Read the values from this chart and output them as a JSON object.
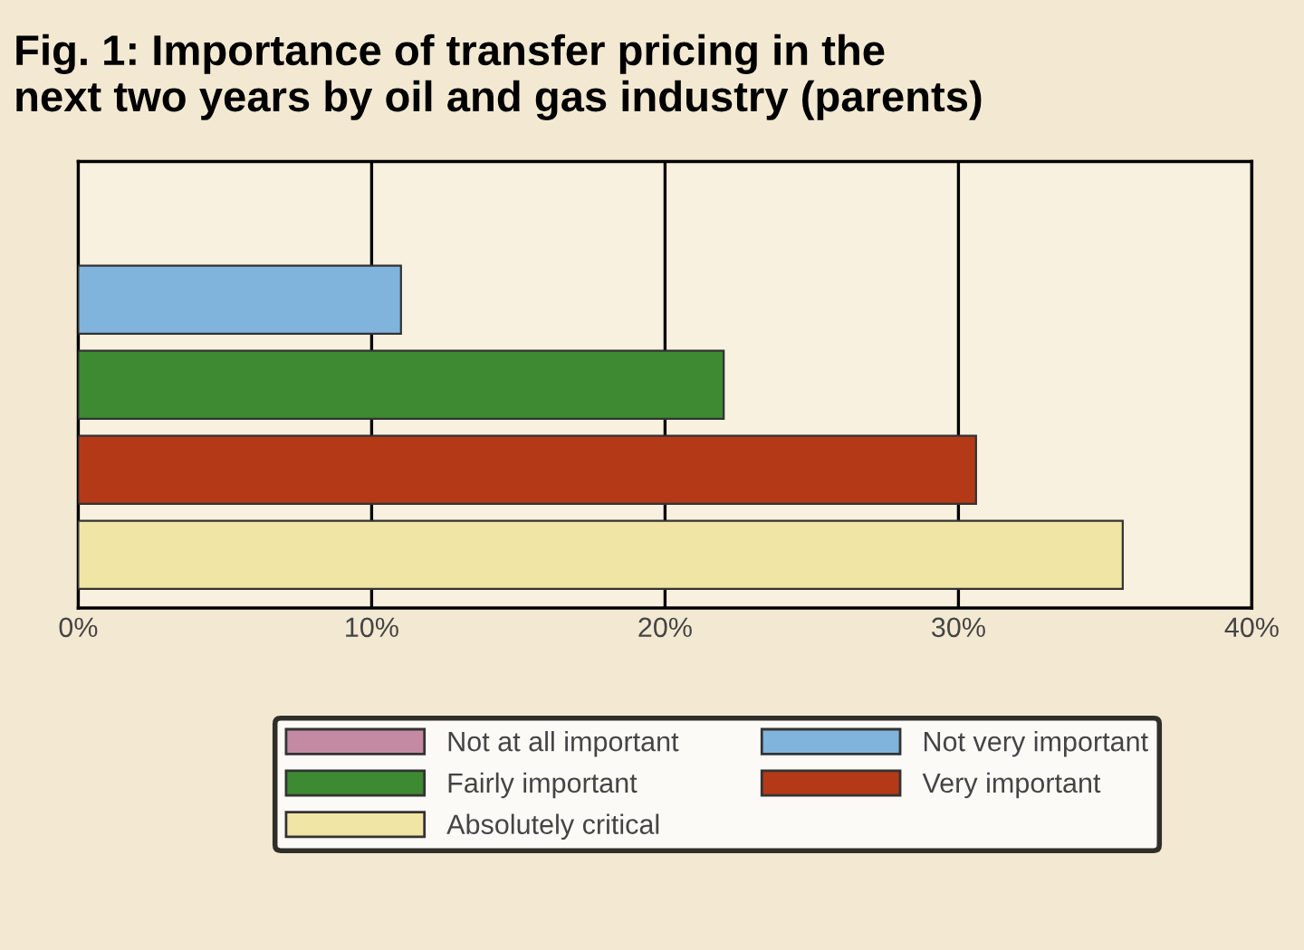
{
  "chart_data": {
    "type": "bar",
    "orientation": "horizontal",
    "title": "Fig. 1: Importance of transfer pricing in the\nnext two years by oil and gas industry (parents)",
    "categories": [
      null
    ],
    "series": [
      {
        "name": "Not at all important",
        "color": "#c48aa3",
        "values": [
          0
        ]
      },
      {
        "name": "Not very important",
        "color": "#80b4dc",
        "values": [
          11
        ]
      },
      {
        "name": "Fairly important",
        "color": "#3e8a33",
        "values": [
          22
        ]
      },
      {
        "name": "Very important",
        "color": "#b43a17",
        "values": [
          30.6
        ]
      },
      {
        "name": "Absolutely critical",
        "color": "#f1e5a5",
        "values": [
          35.6
        ]
      }
    ],
    "xlim": [
      0,
      40
    ],
    "xticks": [
      {
        "value": 0,
        "label": "0%"
      },
      {
        "value": 10,
        "label": "10%"
      },
      {
        "value": 20,
        "label": "20%"
      },
      {
        "value": 30,
        "label": "30%"
      },
      {
        "value": 40,
        "label": "40%"
      }
    ],
    "grid": "x",
    "legend": "bottom"
  }
}
